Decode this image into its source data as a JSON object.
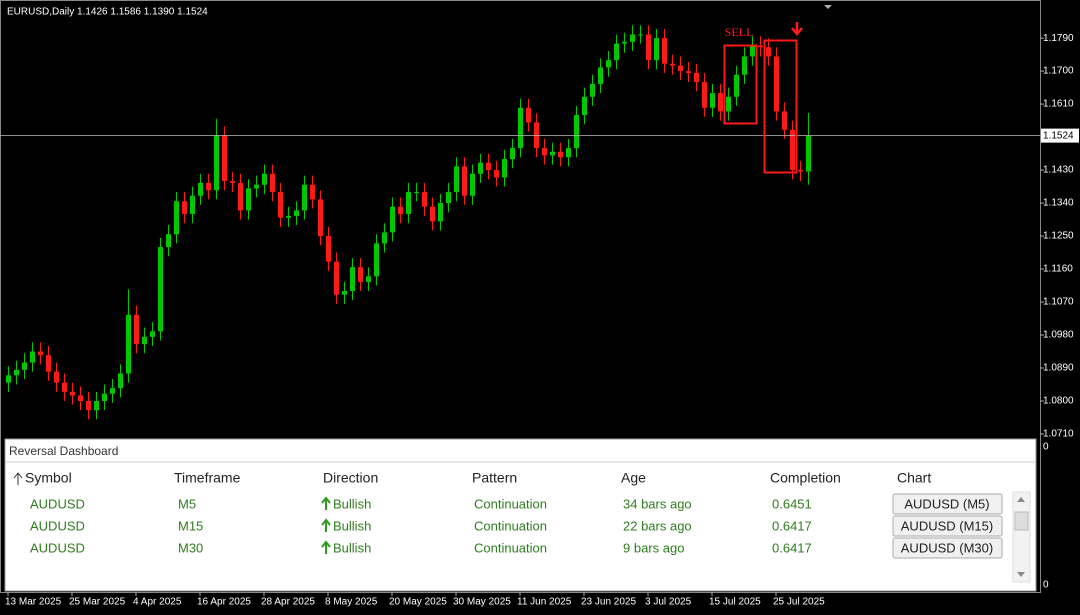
{
  "chart_data": {
    "type": "candlestick",
    "title": "EURUSD,Daily 1.1426 1.1586 1.1390 1.1524",
    "categories": [
      "13 Mar 2025",
      null,
      null,
      null,
      null,
      null,
      null,
      null,
      "25 Mar 2025",
      null,
      null,
      null,
      null,
      null,
      null,
      null,
      "4 Apr 2025",
      null,
      null,
      null,
      null,
      null,
      null,
      null,
      "16 Apr 2025",
      null,
      null,
      null,
      null,
      null,
      null,
      null,
      "28 Apr 2025",
      null,
      null,
      null,
      null,
      null,
      null,
      null,
      "8 May 2025",
      null,
      null,
      null,
      null,
      null,
      null,
      null,
      "20 May 2025",
      null,
      null,
      null,
      null,
      null,
      null,
      null,
      "30 May 2025",
      null,
      null,
      null,
      null,
      null,
      null,
      null,
      "11 Jun 2025",
      null,
      null,
      null,
      null,
      null,
      null,
      null,
      "23 Jun 2025",
      null,
      null,
      null,
      null,
      null,
      null,
      null,
      "3 Jul 2025",
      null,
      null,
      null,
      null,
      null,
      null,
      null,
      "15 Jul 2025",
      null,
      null,
      null,
      null,
      null,
      null,
      null,
      "25 Jul 2025",
      null,
      null,
      null,
      null
    ],
    "open": [
      1.085,
      1.087,
      1.0885,
      1.0905,
      1.0935,
      1.0925,
      1.088,
      1.085,
      1.0825,
      1.0815,
      1.08,
      1.0775,
      1.08,
      1.082,
      1.0835,
      1.0875,
      1.1035,
      1.0955,
      1.0975,
      1.099,
      1.122,
      1.1255,
      1.1345,
      1.131,
      1.136,
      1.1395,
      1.1375,
      1.1525,
      1.14,
      1.1395,
      1.132,
      1.138,
      1.139,
      1.142,
      1.137,
      1.13,
      1.1305,
      1.132,
      1.139,
      1.135,
      1.125,
      1.118,
      1.109,
      1.11,
      1.1165,
      1.1125,
      1.114,
      1.123,
      1.126,
      1.133,
      1.131,
      1.137,
      1.137,
      1.133,
      1.129,
      1.134,
      1.137,
      1.144,
      1.136,
      1.142,
      1.145,
      1.143,
      1.141,
      1.146,
      1.149,
      1.16,
      1.156,
      1.149,
      1.147,
      1.148,
      1.1465,
      1.149,
      1.158,
      1.163,
      1.1665,
      1.171,
      1.173,
      1.1775,
      1.178,
      1.18,
      1.18,
      1.173,
      1.179,
      1.172,
      1.1715,
      1.17,
      1.1695,
      1.167,
      1.16,
      1.164,
      1.159,
      1.163,
      1.169,
      1.174,
      1.177,
      1.1765,
      1.174,
      1.159,
      1.154,
      1.143,
      1.1426
    ],
    "high": [
      1.0895,
      1.091,
      1.093,
      1.096,
      1.096,
      1.095,
      1.0905,
      1.0875,
      1.085,
      1.084,
      1.0825,
      1.0825,
      1.0845,
      1.086,
      1.09,
      1.1105,
      1.106,
      1.1,
      1.1015,
      1.1245,
      1.128,
      1.137,
      1.137,
      1.1385,
      1.142,
      1.142,
      1.157,
      1.155,
      1.1425,
      1.142,
      1.1405,
      1.1415,
      1.1445,
      1.1445,
      1.1395,
      1.133,
      1.1345,
      1.1415,
      1.1415,
      1.1375,
      1.1275,
      1.1205,
      1.1125,
      1.119,
      1.119,
      1.1165,
      1.1255,
      1.1285,
      1.1355,
      1.1355,
      1.1395,
      1.1395,
      1.1395,
      1.1355,
      1.1365,
      1.1395,
      1.1465,
      1.1465,
      1.1445,
      1.1475,
      1.1475,
      1.1455,
      1.1485,
      1.1515,
      1.1625,
      1.1625,
      1.1585,
      1.1515,
      1.1505,
      1.1505,
      1.1515,
      1.1605,
      1.1655,
      1.169,
      1.1735,
      1.1755,
      1.18,
      1.1805,
      1.1825,
      1.1825,
      1.1825,
      1.1815,
      1.1815,
      1.1745,
      1.174,
      1.1725,
      1.172,
      1.1695,
      1.1665,
      1.1665,
      1.1655,
      1.1715,
      1.1765,
      1.1795,
      1.1795,
      1.179,
      1.1765,
      1.1615,
      1.1565,
      1.1455,
      1.1586
    ],
    "low": [
      1.0825,
      1.0845,
      1.086,
      1.088,
      1.09,
      1.0855,
      1.0825,
      1.08,
      1.079,
      1.0775,
      1.075,
      1.075,
      1.0775,
      1.0795,
      1.081,
      1.085,
      1.093,
      1.093,
      1.095,
      1.0965,
      1.1195,
      1.123,
      1.1285,
      1.1285,
      1.1335,
      1.135,
      1.135,
      1.1375,
      1.137,
      1.1295,
      1.1295,
      1.1355,
      1.1365,
      1.1345,
      1.1275,
      1.1275,
      1.128,
      1.1295,
      1.1325,
      1.1225,
      1.1155,
      1.1065,
      1.1065,
      1.1075,
      1.11,
      1.11,
      1.1115,
      1.1205,
      1.1235,
      1.1285,
      1.1285,
      1.1345,
      1.1305,
      1.1265,
      1.1265,
      1.1315,
      1.1345,
      1.1335,
      1.1335,
      1.1395,
      1.1405,
      1.1385,
      1.1385,
      1.1435,
      1.1465,
      1.1535,
      1.1465,
      1.1445,
      1.1445,
      1.144,
      1.144,
      1.1465,
      1.1555,
      1.1605,
      1.164,
      1.1685,
      1.1705,
      1.175,
      1.1755,
      1.1775,
      1.1705,
      1.1705,
      1.1695,
      1.169,
      1.1675,
      1.167,
      1.1645,
      1.1575,
      1.1575,
      1.1565,
      1.1565,
      1.1605,
      1.1665,
      1.1715,
      1.174,
      1.1715,
      1.1565,
      1.1515,
      1.1405,
      1.14,
      1.139
    ],
    "close": [
      1.087,
      1.0885,
      1.0905,
      1.0935,
      1.0925,
      1.088,
      1.085,
      1.0825,
      1.0815,
      1.08,
      1.0775,
      1.08,
      1.082,
      1.0835,
      1.0875,
      1.1035,
      1.0955,
      1.0975,
      1.099,
      1.122,
      1.1255,
      1.1345,
      1.131,
      1.136,
      1.1395,
      1.1375,
      1.1525,
      1.14,
      1.1395,
      1.132,
      1.138,
      1.139,
      1.142,
      1.137,
      1.13,
      1.1305,
      1.132,
      1.139,
      1.135,
      1.125,
      1.118,
      1.109,
      1.11,
      1.1165,
      1.1125,
      1.114,
      1.123,
      1.126,
      1.133,
      1.131,
      1.137,
      1.137,
      1.133,
      1.129,
      1.134,
      1.137,
      1.144,
      1.136,
      1.142,
      1.145,
      1.143,
      1.141,
      1.146,
      1.149,
      1.16,
      1.156,
      1.149,
      1.147,
      1.148,
      1.1465,
      1.149,
      1.158,
      1.163,
      1.1665,
      1.171,
      1.173,
      1.1775,
      1.178,
      1.18,
      1.18,
      1.173,
      1.179,
      1.172,
      1.1715,
      1.17,
      1.1695,
      1.167,
      1.16,
      1.164,
      1.159,
      1.163,
      1.169,
      1.174,
      1.177,
      1.1765,
      1.174,
      1.159,
      1.154,
      1.143,
      1.1426,
      1.1524
    ],
    "up_color": "#00c800",
    "down_color": "#ff1a1a",
    "ylim": [
      1.0699,
      1.1894
    ],
    "yticks": [
      {
        "value": 1.071,
        "label": "1.0710"
      },
      {
        "value": 1.08,
        "label": "1.0800"
      },
      {
        "value": 1.089,
        "label": "1.0890"
      },
      {
        "value": 1.098,
        "label": "1.0980"
      },
      {
        "value": 1.107,
        "label": "1.1070"
      },
      {
        "value": 1.116,
        "label": "1.1160"
      },
      {
        "value": 1.125,
        "label": "1.1250"
      },
      {
        "value": 1.134,
        "label": "1.1340"
      },
      {
        "value": 1.143,
        "label": "1.1430"
      },
      {
        "value": 1.161,
        "label": "1.1610"
      },
      {
        "value": 1.17,
        "label": "1.1700"
      },
      {
        "value": 1.179,
        "label": "1.1790"
      }
    ],
    "current_price": 1.1524,
    "annotation": "SELL"
  },
  "dashboard": {
    "title": "Reversal Dashboard",
    "columns": [
      "Symbol",
      "Timeframe",
      "Direction",
      "Pattern",
      "Age",
      "Completion",
      "Chart"
    ],
    "rows": [
      [
        "AUDUSD",
        "M5",
        "Bullish",
        "Continuation",
        "34 bars ago",
        "0.6451",
        "AUDUSD (M5)"
      ],
      [
        "AUDUSD",
        "M15",
        "Bullish",
        "Continuation",
        "22 bars ago",
        "0.6417",
        "AUDUSD (M15)"
      ],
      [
        "AUDUSD",
        "M30",
        "Bullish",
        "Continuation",
        "9 bars ago",
        "0.6417",
        "AUDUSD (M30)"
      ]
    ]
  },
  "subwindow_scale": [
    "0",
    "0"
  ]
}
